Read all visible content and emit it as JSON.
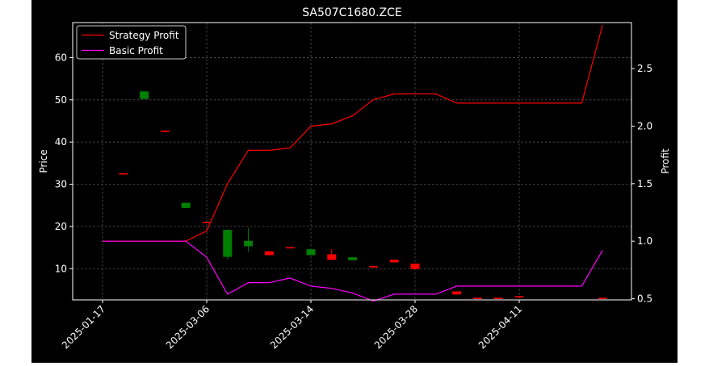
{
  "chart_data": {
    "type": "candlestick+line",
    "title": "SA507C1680.ZCE",
    "xlabel": "",
    "ylabel_left": "Price",
    "ylabel_right": "Profit",
    "ylim_left": [
      2.6,
      68.3
    ],
    "ylim_right": [
      0.49,
      2.9
    ],
    "yticks_left": [
      10,
      20,
      30,
      40,
      50,
      60
    ],
    "yticks_right": [
      0.5,
      1.0,
      1.5,
      2.0,
      2.5
    ],
    "xticks": [
      {
        "index": 0,
        "label": "2025-01-17"
      },
      {
        "index": 5,
        "label": "2025-03-06"
      },
      {
        "index": 10,
        "label": "2025-03-14"
      },
      {
        "index": 15,
        "label": "2025-03-28"
      },
      {
        "index": 20,
        "label": "2025-04-11"
      }
    ],
    "n_bars": 25,
    "grid": true,
    "legend_position": "top-left",
    "up_color": "#008000",
    "down_color": "#ff0000",
    "candles": [
      {
        "i": 0,
        "open": 0,
        "close": 0,
        "high": 0,
        "low": 0,
        "visible": false
      },
      {
        "i": 1,
        "open": 32.6,
        "close": 32.4,
        "high": 32.6,
        "low": 32.4
      },
      {
        "i": 2,
        "open": 50.2,
        "close": 52.0,
        "high": 52.0,
        "low": 50.2
      },
      {
        "i": 3,
        "open": 42.7,
        "close": 42.5,
        "high": 42.7,
        "low": 42.5
      },
      {
        "i": 4,
        "open": 24.4,
        "close": 25.6,
        "high": 25.6,
        "low": 24.4
      },
      {
        "i": 5,
        "open": 21.1,
        "close": 20.9,
        "high": 21.1,
        "low": 20.9
      },
      {
        "i": 6,
        "open": 12.8,
        "close": 19.2,
        "high": 19.2,
        "low": 12.3
      },
      {
        "i": 7,
        "open": 15.3,
        "close": 16.6,
        "high": 19.7,
        "low": 14.0
      },
      {
        "i": 8,
        "open": 14.1,
        "close": 13.2,
        "high": 14.1,
        "low": 13.2
      },
      {
        "i": 9,
        "open": 15.1,
        "close": 14.9,
        "high": 15.1,
        "low": 14.9
      },
      {
        "i": 10,
        "open": 13.2,
        "close": 14.6,
        "high": 14.6,
        "low": 13.2
      },
      {
        "i": 11,
        "open": 13.4,
        "close": 12.1,
        "high": 14.6,
        "low": 12.1
      },
      {
        "i": 12,
        "open": 12.0,
        "close": 12.7,
        "high": 12.7,
        "low": 12.0
      },
      {
        "i": 13,
        "open": 10.6,
        "close": 10.4,
        "high": 10.6,
        "low": 10.4
      },
      {
        "i": 14,
        "open": 12.1,
        "close": 11.5,
        "high": 12.1,
        "low": 11.5
      },
      {
        "i": 15,
        "open": 11.2,
        "close": 9.9,
        "high": 11.2,
        "low": 9.9
      },
      {
        "i": 16,
        "open": 0,
        "close": 0,
        "high": 0,
        "low": 0,
        "visible": false
      },
      {
        "i": 17,
        "open": 4.6,
        "close": 3.9,
        "high": 4.6,
        "low": 3.9
      },
      {
        "i": 18,
        "open": 3.1,
        "close": 2.9,
        "high": 3.1,
        "low": 2.9
      },
      {
        "i": 19,
        "open": 3.1,
        "close": 2.9,
        "high": 3.1,
        "low": 2.9
      },
      {
        "i": 20,
        "open": 3.5,
        "close": 3.3,
        "high": 3.5,
        "low": 3.3
      },
      {
        "i": 21,
        "open": 0,
        "close": 0,
        "high": 0,
        "low": 0,
        "visible": false
      },
      {
        "i": 22,
        "open": 0,
        "close": 0,
        "high": 0,
        "low": 0,
        "visible": false
      },
      {
        "i": 23,
        "open": 0,
        "close": 0,
        "high": 0,
        "low": 0,
        "visible": false
      },
      {
        "i": 24,
        "open": 3.1,
        "close": 2.9,
        "high": 3.1,
        "low": 2.9
      }
    ],
    "series": [
      {
        "name": "Strategy Profit",
        "color": "#ff0000",
        "axis": "right",
        "values": [
          1.0,
          1.0,
          1.0,
          1.0,
          1.0,
          1.09,
          1.5,
          1.79,
          1.79,
          1.81,
          2.0,
          2.02,
          2.09,
          2.23,
          2.28,
          2.28,
          2.28,
          2.2,
          2.2,
          2.2,
          2.2,
          2.2,
          2.2,
          2.2,
          2.88
        ]
      },
      {
        "name": "Basic Profit",
        "color": "#ff00ff",
        "axis": "right",
        "values": [
          1.0,
          1.0,
          1.0,
          1.0,
          1.0,
          0.86,
          0.54,
          0.64,
          0.64,
          0.68,
          0.61,
          0.59,
          0.55,
          0.48,
          0.54,
          0.54,
          0.54,
          0.61,
          0.61,
          0.61,
          0.61,
          0.61,
          0.61,
          0.61,
          0.92
        ]
      }
    ]
  }
}
